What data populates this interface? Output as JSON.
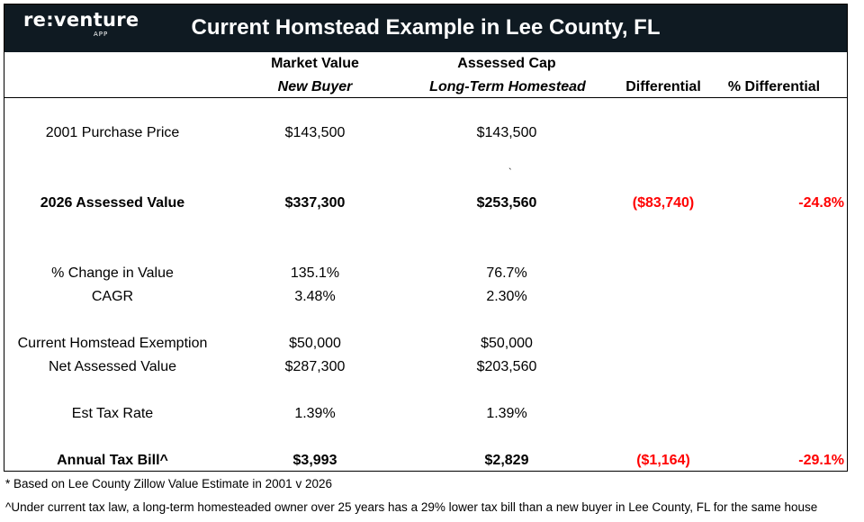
{
  "logo": {
    "brand": "re:venture",
    "sub": "APP"
  },
  "title": "Current Homstead Example in Lee County, FL",
  "columns": {
    "market_value": {
      "line1": "Market Value",
      "line2": "New Buyer"
    },
    "assessed_cap": {
      "line1": "Assessed Cap",
      "line2": "Long-Term Homestead"
    },
    "differential": "Differential",
    "pct_differential": "% Differential"
  },
  "rows": {
    "purchase_price": {
      "label": "2001 Purchase Price",
      "market": "$143,500",
      "cap": "$143,500"
    },
    "tick_mark": "`",
    "assessed_value": {
      "label": "2026 Assessed Value",
      "market": "$337,300",
      "cap": "$253,560",
      "diff": "($83,740)",
      "pct": "-24.8%"
    },
    "pct_change": {
      "label": "% Change in Value",
      "market": "135.1%",
      "cap": "76.7%"
    },
    "cagr": {
      "label": "CAGR",
      "market": "3.48%",
      "cap": "2.30%"
    },
    "homestead_exemption": {
      "label": "Current Homstead Exemption",
      "market": "$50,000",
      "cap": "$50,000"
    },
    "net_assessed": {
      "label": "Net Assessed Value",
      "market": "$287,300",
      "cap": "$203,560"
    },
    "tax_rate": {
      "label": "Est Tax Rate",
      "market": "1.39%",
      "cap": "1.39%"
    },
    "tax_bill": {
      "label": "Annual Tax Bill^",
      "market": "$3,993",
      "cap": "$2,829",
      "diff": "($1,164)",
      "pct": "-29.1%"
    }
  },
  "footnotes": {
    "note1": "* Based on Lee County Zillow Value Estimate in 2001 v 2026",
    "note2": "^Under current tax law, a long-term homesteaded owner over 25 years has a 29% lower tax bill than a new buyer in Lee County, FL for the same house"
  },
  "colors": {
    "header_bg": "#0f1a22",
    "negative": "#ff0000"
  }
}
